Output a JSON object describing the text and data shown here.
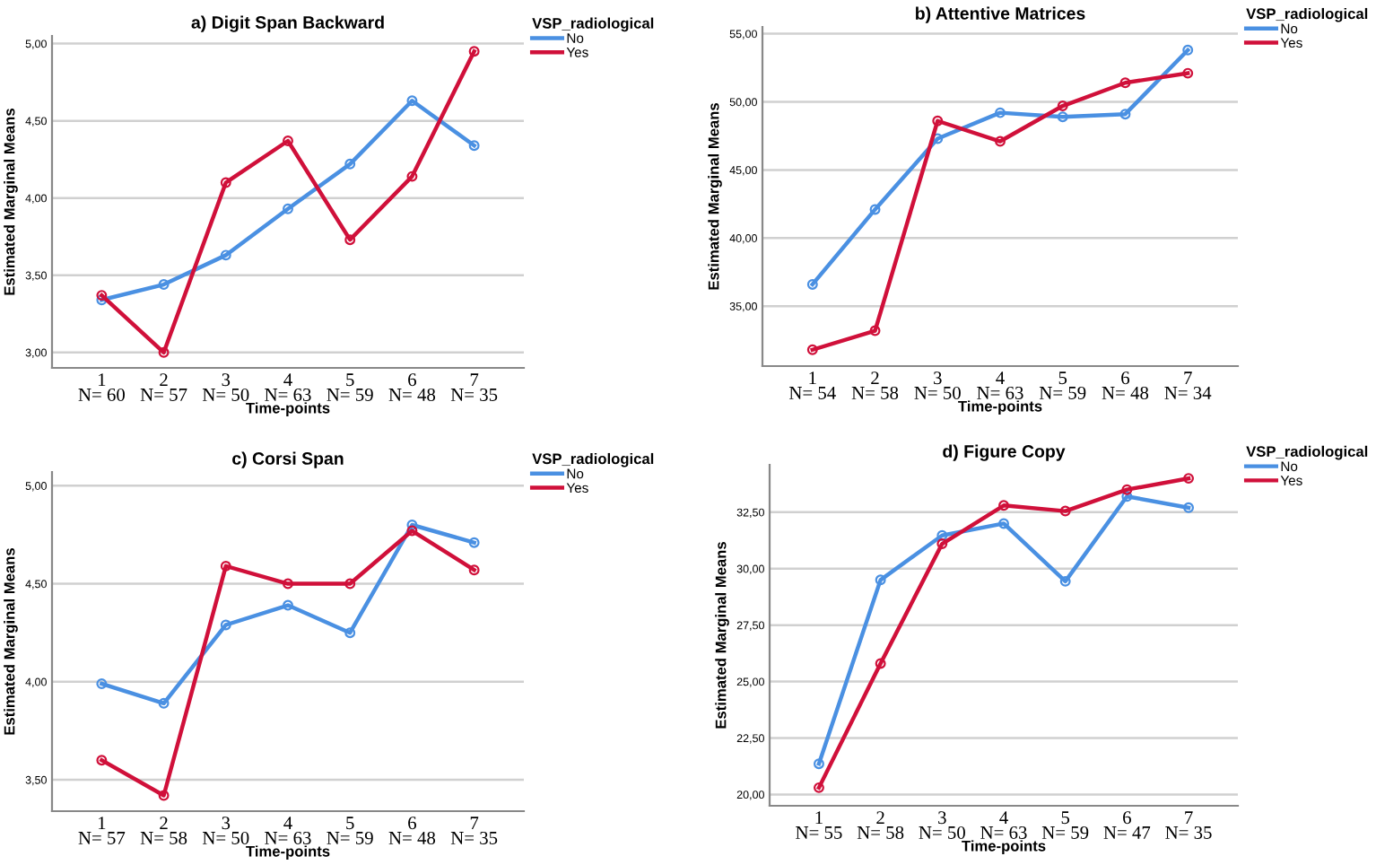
{
  "chart_data": [
    {
      "type": "line",
      "title": "a) Digit Span Backward",
      "xlabel": "Time-points",
      "ylabel": "Estimated Marginal Means",
      "legend_title": "VSP_radiological",
      "legend": "top right",
      "grid": "y",
      "marker": "circle",
      "categories": [
        "1\nN= 60",
        "2\nN= 57",
        "3\nN= 50",
        "4\nN= 63",
        "5\nN= 59",
        "6\nN= 48",
        "7\nN= 35"
      ],
      "ylim": [
        2.9,
        5.05
      ],
      "yticks": [
        {
          "value": 3.0,
          "label": "3,00"
        },
        {
          "value": 3.5,
          "label": "3,50"
        },
        {
          "value": 4.0,
          "label": "4,00"
        },
        {
          "value": 4.5,
          "label": "4,50"
        },
        {
          "value": 5.0,
          "label": "5,00"
        }
      ],
      "series": [
        {
          "name": "No",
          "color": "#4a90e2",
          "values": [
            3.34,
            3.44,
            3.63,
            3.93,
            4.22,
            4.63,
            4.34
          ]
        },
        {
          "name": "Yes",
          "color": "#d0103a",
          "values": [
            3.37,
            3.0,
            4.1,
            4.37,
            3.73,
            4.14,
            4.95
          ]
        }
      ]
    },
    {
      "type": "line",
      "title": "b) Attentive Matrices",
      "xlabel": "Time-points",
      "ylabel": "Estimated Marginal Means",
      "legend_title": "VSP_radiological",
      "legend": "top right",
      "grid": "y",
      "marker": "circle",
      "categories": [
        "1\nN= 54",
        "2\nN= 58",
        "3\nN= 50",
        "4\nN= 63",
        "5\nN= 59",
        "6\nN= 48",
        "7\nN= 34"
      ],
      "ylim": [
        30.6,
        55.5
      ],
      "yticks": [
        {
          "value": 35,
          "label": "35,00"
        },
        {
          "value": 40,
          "label": "40,00"
        },
        {
          "value": 45,
          "label": "45,00"
        },
        {
          "value": 50,
          "label": "50,00"
        },
        {
          "value": 55,
          "label": "55,00"
        }
      ],
      "series": [
        {
          "name": "No",
          "color": "#4a90e2",
          "values": [
            36.6,
            42.1,
            47.3,
            49.2,
            48.9,
            49.1,
            53.8
          ]
        },
        {
          "name": "Yes",
          "color": "#d0103a",
          "values": [
            31.8,
            33.2,
            48.6,
            47.1,
            49.7,
            51.4,
            52.1
          ]
        }
      ]
    },
    {
      "type": "line",
      "title": "c) Corsi Span",
      "xlabel": "Time-points",
      "ylabel": "Estimated Marginal Means",
      "legend_title": "VSP_radiological",
      "legend": "top right",
      "grid": "y",
      "marker": "circle",
      "categories": [
        "1\nN= 57",
        "2\nN= 58",
        "3\nN= 50",
        "4\nN= 63",
        "5\nN= 59",
        "6\nN= 48",
        "7\nN= 35"
      ],
      "ylim": [
        3.34,
        5.07
      ],
      "yticks": [
        {
          "value": 3.5,
          "label": "3,50"
        },
        {
          "value": 4.0,
          "label": "4,00"
        },
        {
          "value": 4.5,
          "label": "4,50"
        },
        {
          "value": 5.0,
          "label": "5,00"
        }
      ],
      "series": [
        {
          "name": "No",
          "color": "#4a90e2",
          "values": [
            3.99,
            3.89,
            4.29,
            4.39,
            4.25,
            4.8,
            4.71
          ]
        },
        {
          "name": "Yes",
          "color": "#d0103a",
          "values": [
            3.6,
            3.42,
            4.59,
            4.5,
            4.5,
            4.77,
            4.57
          ]
        }
      ]
    },
    {
      "type": "line",
      "title": "d) Figure Copy",
      "xlabel": "Time-points",
      "ylabel": "Estimated Marginal Means",
      "legend_title": "VSP_radiological",
      "legend": "top right",
      "grid": "y",
      "marker": "circle",
      "categories": [
        "1\nN= 55",
        "2\nN= 58",
        "3\nN= 50",
        "4\nN= 63",
        "5\nN= 59",
        "6\nN= 47",
        "7\nN= 35"
      ],
      "ylim": [
        19.5,
        34.6
      ],
      "yticks": [
        {
          "value": 20,
          "label": "20,00"
        },
        {
          "value": 22.5,
          "label": "22,50"
        },
        {
          "value": 25,
          "label": "25,00"
        },
        {
          "value": 27.5,
          "label": "27,50"
        },
        {
          "value": 30,
          "label": "30,00"
        },
        {
          "value": 32.5,
          "label": "32,50"
        }
      ],
      "series": [
        {
          "name": "No",
          "color": "#4a90e2",
          "values": [
            21.36,
            29.5,
            31.47,
            32.0,
            29.44,
            33.2,
            32.7
          ]
        },
        {
          "name": "Yes",
          "color": "#d0103a",
          "values": [
            20.3,
            25.8,
            31.1,
            32.8,
            32.55,
            33.5,
            34.0
          ]
        }
      ]
    }
  ]
}
